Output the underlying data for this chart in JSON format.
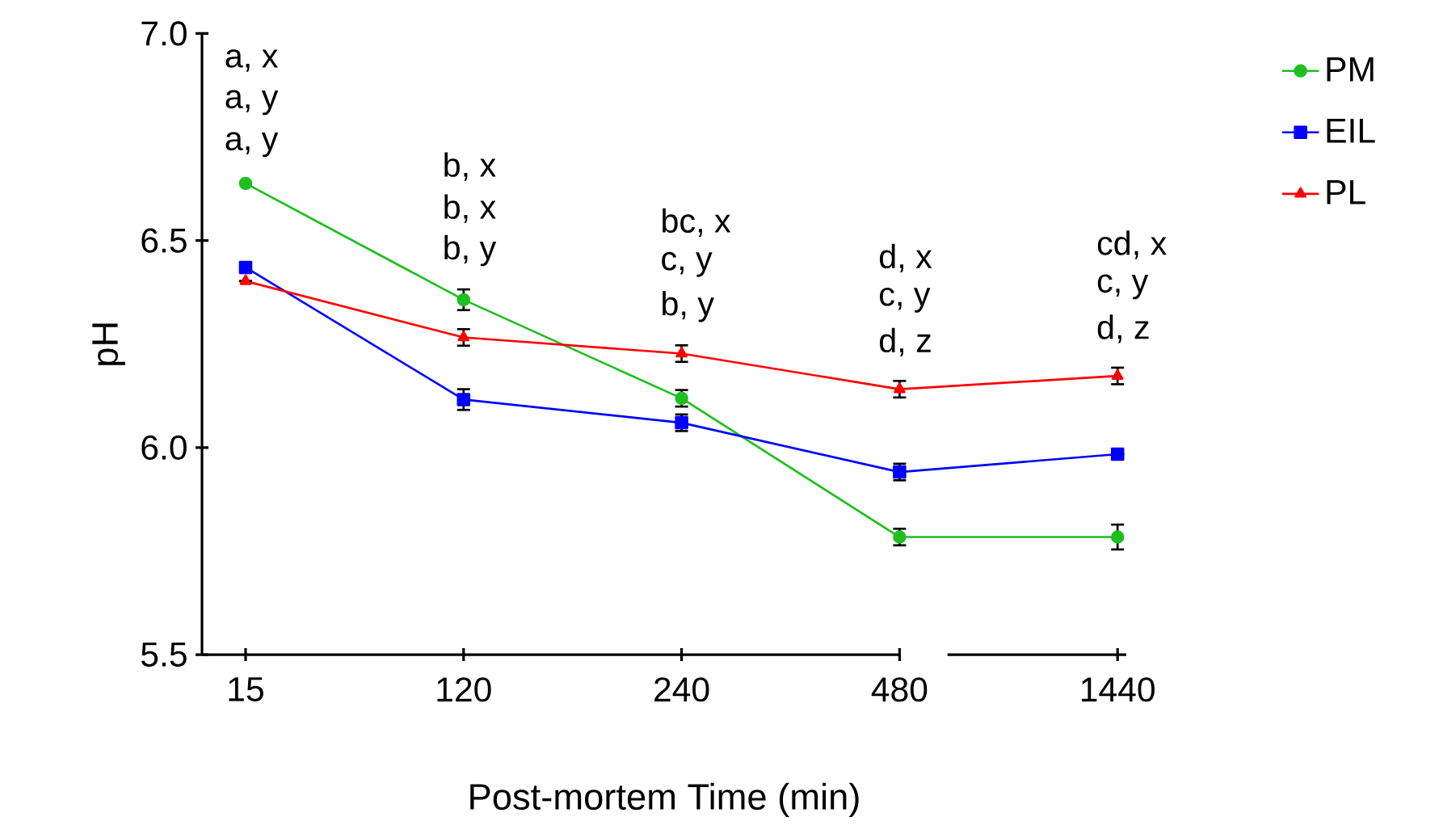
{
  "chart_data": {
    "type": "line",
    "xlabel": "Post-mortem Time (min)",
    "ylabel": "pH",
    "categories": [
      "15",
      "120",
      "240",
      "480",
      "1440"
    ],
    "ylim": [
      5.5,
      7.0
    ],
    "yticks": [
      {
        "value": 5.5,
        "label": "5.5"
      },
      {
        "value": 6.0,
        "label": "6.0"
      },
      {
        "value": 6.5,
        "label": "6.5"
      },
      {
        "value": 7.0,
        "label": "7.0"
      }
    ],
    "legend": "top right",
    "grid": false,
    "series": [
      {
        "name": "PM",
        "color": "#1fbf1f",
        "marker": "circle",
        "values": [
          6.638,
          6.357,
          6.119,
          5.784,
          5.784
        ],
        "errors": [
          null,
          0.025,
          0.02,
          0.02,
          0.03
        ]
      },
      {
        "name": "EIL",
        "color": "#0000ff",
        "marker": "square",
        "values": [
          6.435,
          6.116,
          6.06,
          5.941,
          5.984
        ],
        "errors": [
          null,
          0.025,
          0.02,
          0.02,
          null
        ]
      },
      {
        "name": "PL",
        "color": "#ff0000",
        "marker": "triangle",
        "values": [
          6.402,
          6.266,
          6.227,
          6.141,
          6.173
        ],
        "errors": [
          null,
          0.02,
          0.02,
          0.02,
          0.02
        ]
      }
    ],
    "annotations": [
      "a, x",
      "a, y",
      "a, y",
      "b, x",
      "b, x",
      "b, y",
      "bc, x",
      "c, y",
      "b, y",
      "d, x",
      "c, y",
      "d, z",
      "cd, x",
      "c, y",
      "d, z"
    ]
  }
}
